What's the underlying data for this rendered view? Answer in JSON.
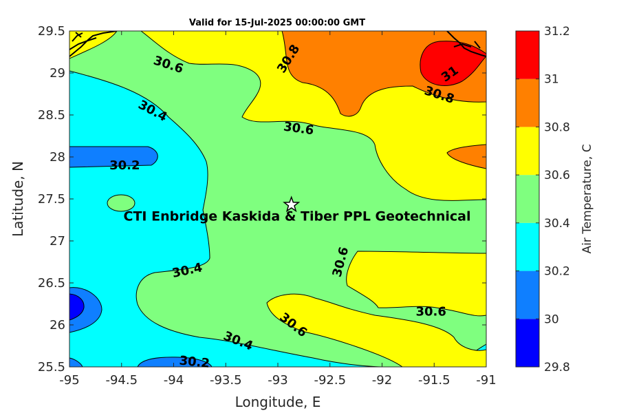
{
  "chart_data": {
    "type": "contour",
    "title": "Valid for 15-Jul-2025 00:00:00 GMT",
    "xlabel": "Longitude, E",
    "ylabel": "Latitude, N",
    "xlim": [
      -95,
      -91
    ],
    "ylim": [
      25.5,
      29.5
    ],
    "x_ticks": [
      -95,
      -94.5,
      -94,
      -93.5,
      -93,
      -92.5,
      -92,
      -91.5,
      -91
    ],
    "y_ticks": [
      25.5,
      26,
      26.5,
      27,
      27.5,
      28,
      28.5,
      29,
      29.5
    ],
    "colorbar": {
      "label": "Air Temperature, C",
      "ticks": [
        29.8,
        30,
        30.2,
        30.4,
        30.6,
        30.8,
        31,
        31.2
      ],
      "colors": [
        "#0000ff",
        "#0f7fff",
        "#00ffff",
        "#7fff7f",
        "#ffff00",
        "#ff8000",
        "#ff0000",
        "#800000"
      ]
    },
    "contour_levels": [
      29.8,
      30,
      30.2,
      30.4,
      30.6,
      30.8,
      31,
      31.2
    ],
    "contour_labels": [
      {
        "text": "30.6",
        "lon": -94.05,
        "lat": 29.1,
        "angle": 18
      },
      {
        "text": "30.8",
        "lon": -92.9,
        "lat": 29.17,
        "angle": -58
      },
      {
        "text": "31",
        "lon": -91.35,
        "lat": 28.99,
        "angle": -35
      },
      {
        "text": "30.8",
        "lon": -91.45,
        "lat": 28.74,
        "angle": 18
      },
      {
        "text": "30.4",
        "lon": -94.2,
        "lat": 28.55,
        "angle": 28
      },
      {
        "text": "30.6",
        "lon": -92.8,
        "lat": 28.34,
        "angle": 8
      },
      {
        "text": "30.2",
        "lon": -94.47,
        "lat": 27.9,
        "angle": 0
      },
      {
        "text": "30.6",
        "lon": -92.4,
        "lat": 26.75,
        "angle": -75
      },
      {
        "text": "30.4",
        "lon": -93.87,
        "lat": 26.65,
        "angle": -12
      },
      {
        "text": "30.6",
        "lon": -91.53,
        "lat": 26.16,
        "angle": 0
      },
      {
        "text": "30.6",
        "lon": -92.85,
        "lat": 26.0,
        "angle": 38
      },
      {
        "text": "30.4",
        "lon": -93.38,
        "lat": 25.81,
        "angle": 22
      },
      {
        "text": "30.2",
        "lon": -93.8,
        "lat": 25.56,
        "angle": 6
      }
    ],
    "site": {
      "name": "CTI Enbridge  Kaskida & Tiber PPL Geotechnical",
      "lon": -92.87,
      "lat": 27.43
    }
  }
}
